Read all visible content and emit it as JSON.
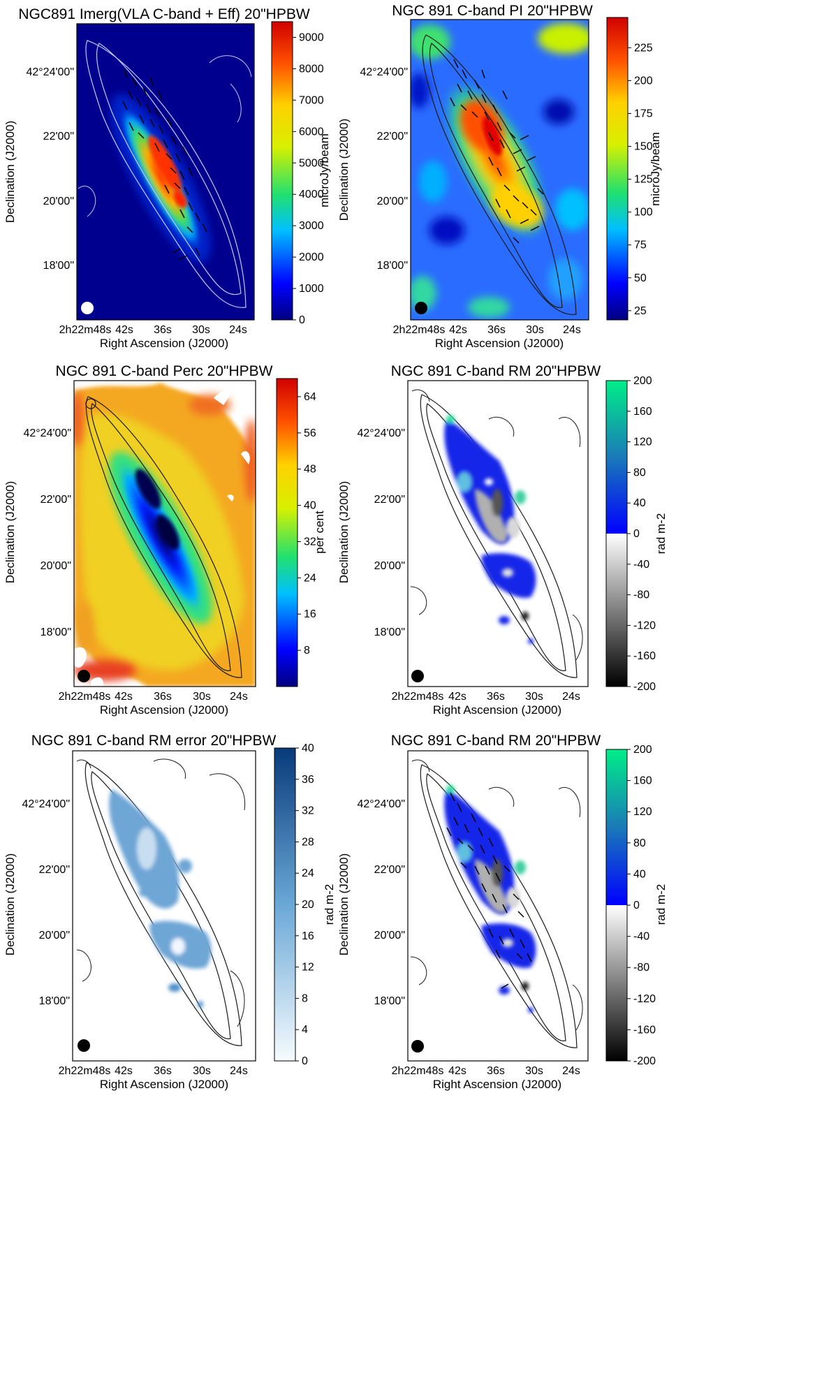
{
  "panels": [
    {
      "id": "total-intensity",
      "title": "NGC891   Imerg(VLA C-band + Eff)   20\"HPBW",
      "xlabel": "Right Ascension (J2000)",
      "ylabel": "Declination (J2000)",
      "xticks": [
        "2h22m48s",
        "42s",
        "36s",
        "30s",
        "24s"
      ],
      "yticks": [
        "42°24'00\"",
        "22'00\"",
        "20'00\"",
        "18'00\""
      ],
      "colorbar": {
        "label": "microJy/beam",
        "ticks": [
          "9000",
          "8000",
          "7000",
          "6000",
          "5000",
          "4000",
          "3000",
          "2000",
          "1000",
          "0"
        ],
        "range": [
          0,
          9500
        ]
      },
      "beam_color": "#ffffff"
    },
    {
      "id": "polarized-intensity",
      "title": "NGC 891    C-band    PI    20\"HPBW",
      "xlabel": "Right Ascension (J2000)",
      "ylabel": "Declination (J2000)",
      "xticks": [
        "2h22m48s",
        "42s",
        "36s",
        "30s",
        "24s"
      ],
      "yticks": [
        "42°24'00\"",
        "22'00\"",
        "20'00\"",
        "18'00\""
      ],
      "colorbar": {
        "label": "microJy/beam",
        "ticks": [
          "225",
          "200",
          "175",
          "150",
          "125",
          "100",
          "75",
          "50",
          "25"
        ],
        "range": [
          18,
          248
        ]
      },
      "beam_color": "#000000"
    },
    {
      "id": "percent-polarization",
      "title": "NGC 891    C-band    Perc    20\"HPBW",
      "xlabel": "Right Ascension (J2000)",
      "ylabel": "Declination (J2000)",
      "xticks": [
        "2h22m48s",
        "42s",
        "36s",
        "30s",
        "24s"
      ],
      "yticks": [
        "42°24'00\"",
        "22'00\"",
        "20'00\"",
        "18'00\""
      ],
      "colorbar": {
        "label": "per cent",
        "ticks": [
          "64",
          "56",
          "48",
          "40",
          "32",
          "24",
          "16",
          "8"
        ],
        "range": [
          0,
          68
        ]
      },
      "beam_color": "#000000"
    },
    {
      "id": "rotation-measure",
      "title": "NGC 891    C-band    RM    20\"HPBW",
      "xlabel": "Right Ascension (J2000)",
      "ylabel": "Declination (J2000)",
      "xticks": [
        "2h22m48s",
        "42s",
        "36s",
        "30s",
        "24s"
      ],
      "yticks": [
        "42°24'00\"",
        "22'00\"",
        "20'00\"",
        "18'00\""
      ],
      "colorbar": {
        "label": "rad m-2",
        "ticks": [
          "200",
          "160",
          "120",
          "80",
          "40",
          "0",
          "-40",
          "-80",
          "-120",
          "-160",
          "-200"
        ],
        "range": [
          -200,
          200
        ]
      },
      "beam_color": "#000000"
    },
    {
      "id": "rm-error",
      "title": "NGC 891    C-band    RM error    20\"HPBW",
      "xlabel": "Right Ascension (J2000)",
      "ylabel": "Declination (J2000)",
      "xticks": [
        "2h22m48s",
        "42s",
        "36s",
        "30s",
        "24s"
      ],
      "yticks": [
        "42°24'00\"",
        "22'00\"",
        "20'00\"",
        "18'00\""
      ],
      "colorbar": {
        "label": "rad m-2",
        "ticks": [
          "40",
          "36",
          "32",
          "28",
          "24",
          "20",
          "16",
          "12",
          "8",
          "4",
          "0"
        ],
        "range": [
          0,
          40
        ]
      },
      "beam_color": "#000000"
    },
    {
      "id": "rotation-measure-vectors",
      "title": "NGC 891    C-band    RM    20\"HPBW",
      "xlabel": "Right Ascension (J2000)",
      "ylabel": "Declination (J2000)",
      "xticks": [
        "2h22m48s",
        "42s",
        "36s",
        "30s",
        "24s"
      ],
      "yticks": [
        "42°24'00\"",
        "22'00\"",
        "20'00\"",
        "18'00\""
      ],
      "colorbar": {
        "label": "rad m-2",
        "ticks": [
          "200",
          "160",
          "120",
          "80",
          "40",
          "0",
          "-40",
          "-80",
          "-120",
          "-160",
          "-200"
        ],
        "range": [
          -200,
          200
        ]
      },
      "beam_color": "#000000"
    }
  ],
  "chart_data": [
    {
      "type": "heatmap",
      "title": "NGC891   Imerg(VLA C-band + Eff)   20\"HPBW",
      "object": "NGC891",
      "quantity": "total intensity",
      "units": "microJy/beam",
      "clim": [
        0,
        9500
      ],
      "colormap": "jet",
      "overlay": "polarization B-vectors, contours",
      "beam": "20\"HPBW"
    },
    {
      "type": "heatmap",
      "title": "NGC 891    C-band    PI    20\"HPBW",
      "object": "NGC 891",
      "quantity": "polarized intensity",
      "units": "microJy/beam",
      "clim": [
        18,
        248
      ],
      "colormap": "jet",
      "overlay": "polarization B-vectors, contours",
      "beam": "20\"HPBW"
    },
    {
      "type": "heatmap",
      "title": "NGC 891    C-band    Perc    20\"HPBW",
      "object": "NGC 891",
      "quantity": "percentage polarization",
      "units": "per cent",
      "clim": [
        0,
        68
      ],
      "colormap": "jet",
      "overlay": "contours",
      "beam": "20\"HPBW"
    },
    {
      "type": "heatmap",
      "title": "NGC 891    C-band    RM    20\"HPBW",
      "object": "NGC 891",
      "quantity": "rotation measure",
      "units": "rad m-2",
      "clim": [
        -200,
        200
      ],
      "colormap": "grey (negative) / blue-green (positive)",
      "overlay": "contours",
      "beam": "20\"HPBW"
    },
    {
      "type": "heatmap",
      "title": "NGC 891    C-band    RM error    20\"HPBW",
      "object": "NGC 891",
      "quantity": "rotation measure error",
      "units": "rad m-2",
      "clim": [
        0,
        40
      ],
      "colormap": "blues",
      "overlay": "contours",
      "beam": "20\"HPBW"
    },
    {
      "type": "heatmap",
      "title": "NGC 891    C-band    RM    20\"HPBW",
      "object": "NGC 891",
      "quantity": "rotation measure",
      "units": "rad m-2",
      "clim": [
        -200,
        200
      ],
      "colormap": "grey (negative) / blue-green (positive)",
      "overlay": "polarization B-vectors, contours",
      "beam": "20\"HPBW"
    }
  ]
}
